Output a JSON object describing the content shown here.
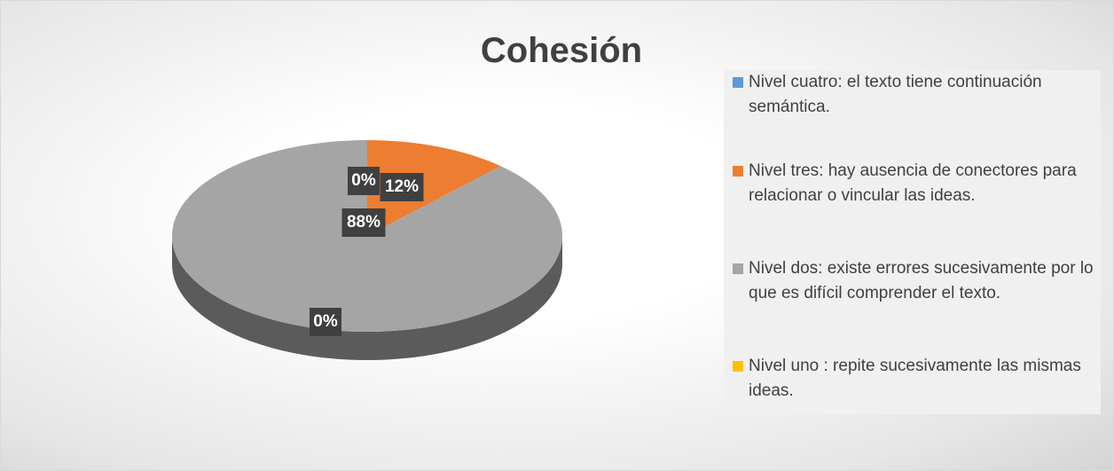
{
  "chart_data": {
    "type": "pie",
    "title": "Cohesión",
    "categories": [
      "Nivel cuatro: el texto tiene continuación semántica.",
      "Nivel tres: hay ausencia de conectores para relacionar o vincular las ideas.",
      "Nivel dos: existe errores sucesivamente por lo que es difícil comprender el texto.",
      "Nivel uno : repite sucesivamente las mismas ideas."
    ],
    "values": [
      0,
      12,
      88,
      0
    ],
    "value_labels": [
      "0%",
      "12%",
      "88%",
      "0%"
    ],
    "colors": [
      "#5b9bd5",
      "#ed7d31",
      "#a5a5a5",
      "#ffc000"
    ],
    "legend": "right"
  }
}
